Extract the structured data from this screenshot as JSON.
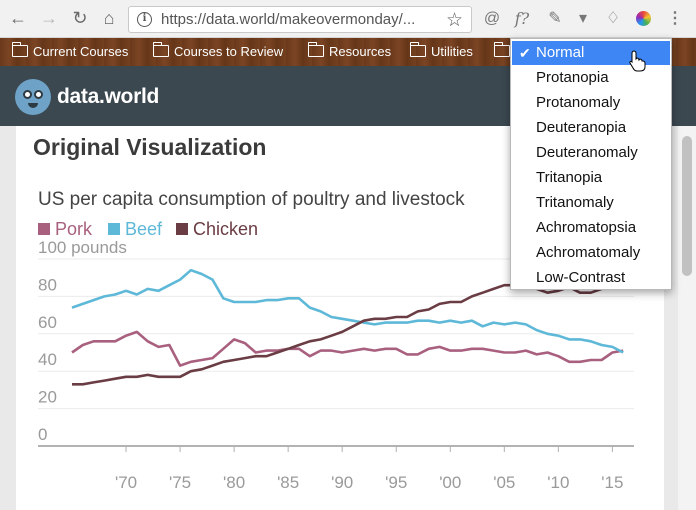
{
  "browser": {
    "url_host": "https://data.world",
    "url_path": "/makeovermonday/..."
  },
  "bookmarks": [
    "Current Courses",
    "Courses to Review",
    "Resources",
    "Utilities"
  ],
  "site": {
    "logo_text": "data.world"
  },
  "page": {
    "title": "Original Visualization"
  },
  "colorblind_menu": {
    "selected": "Normal",
    "options": [
      "Normal",
      "Protanopia",
      "Protanomaly",
      "Deuteranopia",
      "Deuteranomaly",
      "Tritanopia",
      "Tritanomaly",
      "Achromatopsia",
      "Achromatomaly",
      "Low-Contrast"
    ]
  },
  "colors": {
    "pork": "#a8607e",
    "beef": "#5eb8d8",
    "chicken": "#6a3c43",
    "menu_highlight": "#3d86f3"
  },
  "chart_data": {
    "type": "line",
    "title": "US per capita consumption of poultry and livestock",
    "ylim": [
      0,
      100
    ],
    "xlim": [
      1965,
      2017
    ],
    "y_ticks": [
      "0",
      "20",
      "40",
      "60",
      "80",
      "100 pounds"
    ],
    "y_tick_values": [
      0,
      20,
      40,
      60,
      80,
      100
    ],
    "x_ticks": [
      "'70",
      "'75",
      "'80",
      "'85",
      "'90",
      "'95",
      "'00",
      "'05",
      "'10",
      "'15"
    ],
    "x_tick_values": [
      1970,
      1975,
      1980,
      1985,
      1990,
      1995,
      2000,
      2005,
      2010,
      2015
    ],
    "series": [
      {
        "name": "Pork",
        "x": [
          1965,
          1966,
          1967,
          1968,
          1969,
          1970,
          1971,
          1972,
          1973,
          1974,
          1975,
          1976,
          1977,
          1978,
          1979,
          1980,
          1981,
          1982,
          1983,
          1984,
          1985,
          1986,
          1987,
          1988,
          1989,
          1990,
          1991,
          1992,
          1993,
          1994,
          1995,
          1996,
          1997,
          1998,
          1999,
          2000,
          2001,
          2002,
          2003,
          2004,
          2005,
          2006,
          2007,
          2008,
          2009,
          2010,
          2011,
          2012,
          2013,
          2014,
          2015,
          2016
        ],
        "values": [
          50,
          54,
          56,
          56,
          56,
          59,
          61,
          56,
          53,
          54,
          43,
          45,
          46,
          47,
          52,
          57,
          55,
          50,
          51,
          51,
          52,
          52,
          48,
          51,
          51,
          50,
          51,
          52,
          51,
          52,
          52,
          49,
          49,
          52,
          53,
          51,
          51,
          52,
          52,
          51,
          50,
          50,
          51,
          49,
          50,
          48,
          45,
          45,
          46,
          46,
          50,
          51
        ]
      },
      {
        "name": "Beef",
        "x": [
          1965,
          1966,
          1967,
          1968,
          1969,
          1970,
          1971,
          1972,
          1973,
          1974,
          1975,
          1976,
          1977,
          1978,
          1979,
          1980,
          1981,
          1982,
          1983,
          1984,
          1985,
          1986,
          1987,
          1988,
          1989,
          1990,
          1991,
          1992,
          1993,
          1994,
          1995,
          1996,
          1997,
          1998,
          1999,
          2000,
          2001,
          2002,
          2003,
          2004,
          2005,
          2006,
          2007,
          2008,
          2009,
          2010,
          2011,
          2012,
          2013,
          2014,
          2015,
          2016
        ],
        "values": [
          74,
          76,
          78,
          80,
          81,
          83,
          81,
          84,
          83,
          86,
          89,
          94,
          92,
          89,
          79,
          77,
          77,
          77,
          78,
          78,
          79,
          79,
          74,
          72,
          69,
          68,
          67,
          66,
          65,
          66,
          66,
          66,
          67,
          67,
          66,
          67,
          66,
          67,
          64,
          66,
          65,
          66,
          65,
          62,
          60,
          59,
          57,
          57,
          56,
          54,
          53,
          50
        ]
      },
      {
        "name": "Chicken",
        "x": [
          1965,
          1966,
          1967,
          1968,
          1969,
          1970,
          1971,
          1972,
          1973,
          1974,
          1975,
          1976,
          1977,
          1978,
          1979,
          1980,
          1981,
          1982,
          1983,
          1984,
          1985,
          1986,
          1987,
          1988,
          1989,
          1990,
          1991,
          1992,
          1993,
          1994,
          1995,
          1996,
          1997,
          1998,
          1999,
          2000,
          2001,
          2002,
          2003,
          2004,
          2005,
          2006,
          2007,
          2008,
          2009,
          2010,
          2011,
          2012,
          2013,
          2014,
          2015,
          2016
        ],
        "values": [
          33,
          33,
          34,
          35,
          36,
          37,
          37,
          38,
          37,
          37,
          37,
          40,
          41,
          43,
          45,
          46,
          47,
          48,
          48,
          50,
          52,
          54,
          56,
          57,
          59,
          61,
          64,
          67,
          68,
          68,
          69,
          69,
          72,
          73,
          76,
          77,
          77,
          80,
          82,
          84,
          86,
          86,
          85,
          84,
          82,
          83,
          85,
          82,
          82,
          84,
          88,
          90
        ]
      }
    ]
  }
}
